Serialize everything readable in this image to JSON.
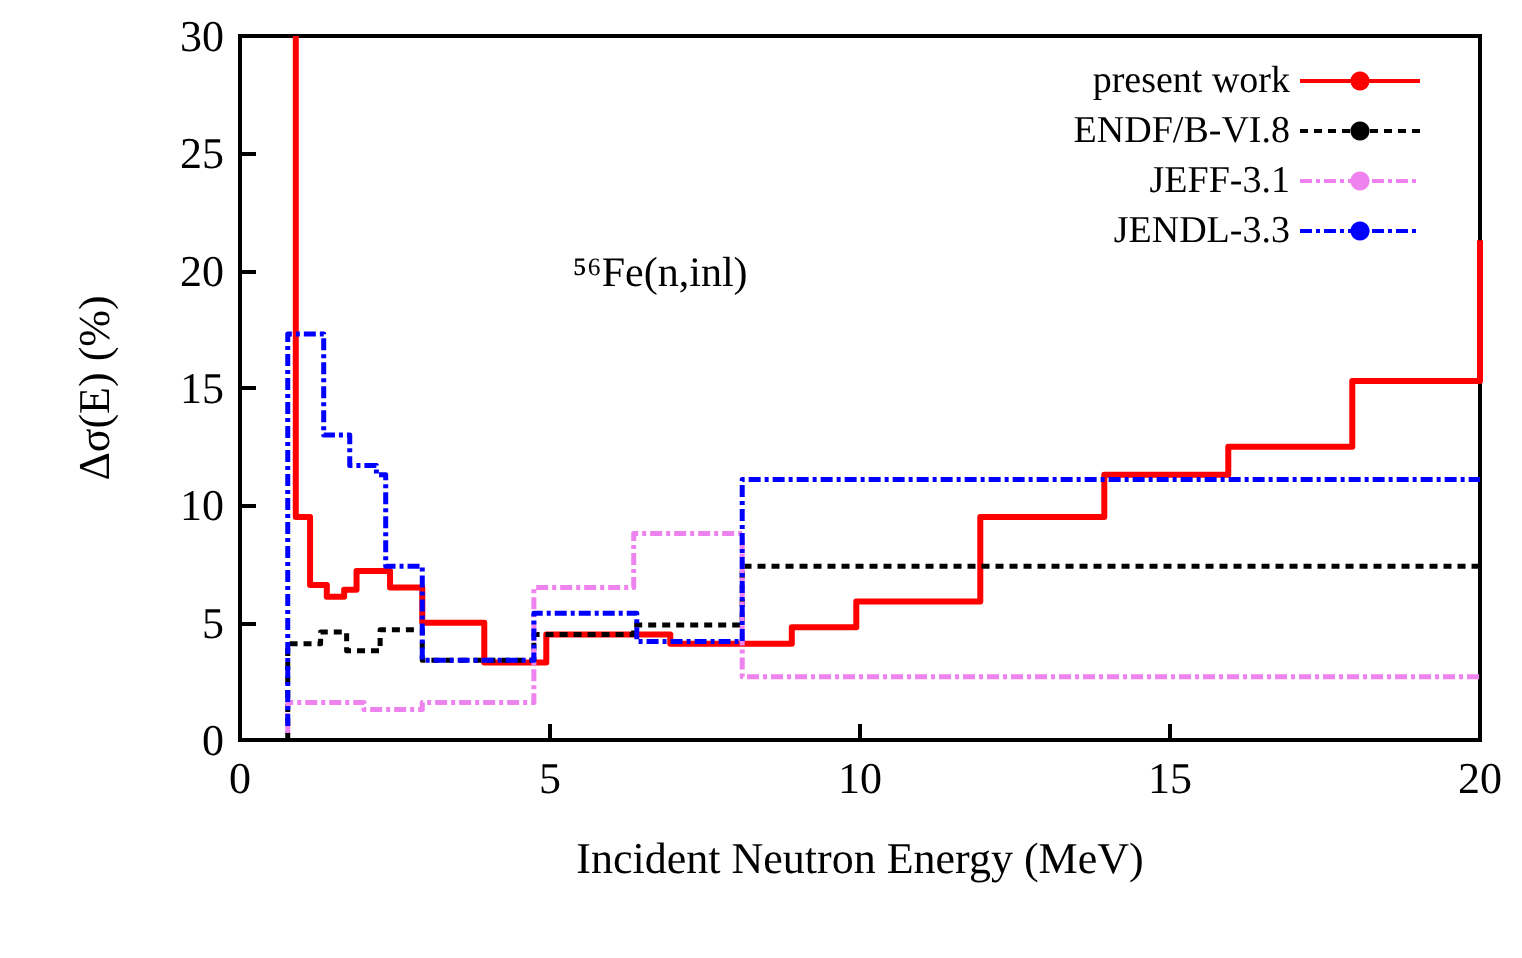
{
  "chart_data": {
    "type": "step",
    "xlabel": "Incident Neutron Energy (MeV)",
    "ylabel": "Δσ(E) (%)",
    "xlim": [
      0,
      20
    ],
    "xticks": [
      0,
      5,
      10,
      15,
      20
    ],
    "ylim": [
      0,
      30
    ],
    "yticks": [
      0,
      5,
      10,
      15,
      20,
      25,
      30
    ],
    "grid": false,
    "legend": "top right",
    "annotations": [
      "⁵⁶Fe(n,inl)"
    ],
    "series": [
      {
        "name": "present work",
        "color": "#ff0000",
        "line_style": "solid",
        "x": [
          0.9,
          0.9,
          1.13,
          1.4,
          1.68,
          1.88,
          2.42,
          2.94,
          3.94,
          4.94,
          6.94,
          8.9,
          9.94,
          11.94,
          13.94,
          15.94,
          17.94,
          20,
          20
        ],
        "values": [
          30,
          9.5,
          6.6,
          6.1,
          6.4,
          7.2,
          6.5,
          5.0,
          3.3,
          4.5,
          4.1,
          4.8,
          5.9,
          9.5,
          11.3,
          12.5,
          15.3,
          15.3,
          21.3
        ]
      },
      {
        "name": "ENDF/B-VI.8",
        "color": "#000000",
        "line_style": "dotted",
        "x": [
          0.77,
          0.77,
          1.3,
          1.72,
          2.26,
          2.94,
          4.74,
          6.35,
          8.1,
          20
        ],
        "values": [
          0,
          4.1,
          4.6,
          3.8,
          4.7,
          3.4,
          4.5,
          4.9,
          7.4,
          7.4
        ]
      },
      {
        "name": "JEFF-3.1",
        "color": "#ee82ee",
        "line_style": "dashed",
        "x": [
          0.77,
          0.77,
          2.0,
          2.94,
          4.74,
          6.35,
          8.1,
          20
        ],
        "values": [
          0.3,
          1.6,
          1.3,
          1.6,
          6.5,
          8.8,
          2.7,
          2.7
        ]
      },
      {
        "name": "JENDL-3.3",
        "color": "#0000ff",
        "line_style": "dashed",
        "x": [
          0.77,
          0.77,
          1.35,
          1.77,
          2.2,
          2.35,
          2.94,
          4.74,
          6.4,
          8.1,
          20
        ],
        "values": [
          0.6,
          17.3,
          13.0,
          11.7,
          11.3,
          7.4,
          3.4,
          5.4,
          4.2,
          11.1,
          11.1
        ]
      }
    ]
  }
}
